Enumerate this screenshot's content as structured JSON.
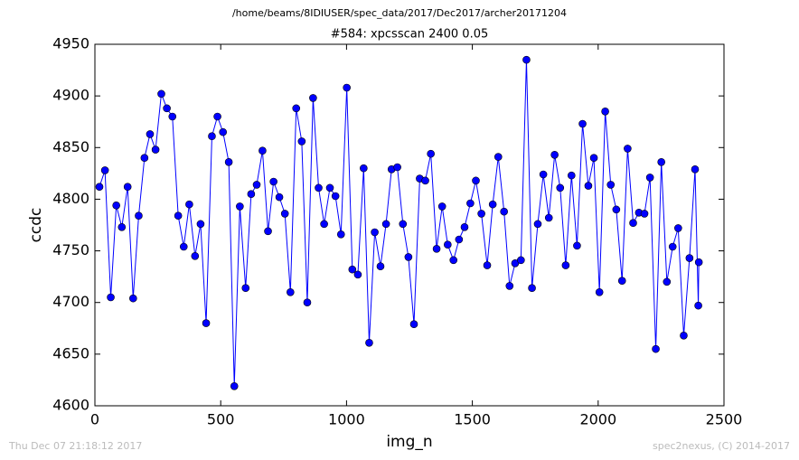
{
  "chart_data": {
    "type": "line",
    "header": "/home/beams/8IDIUSER/spec_data/2017/Dec2017/archer20171204",
    "title": "#584: xpcsscan 2400 0.05",
    "x_label": "img_n",
    "y_label": "ccdc",
    "footer_left": "Thu Dec 07 21:18:12 2017",
    "footer_right": "spec2nexus, (C) 2014-2017",
    "xlim": [
      0,
      2500
    ],
    "xticks": [
      0,
      500,
      1000,
      1500,
      2000,
      2500
    ],
    "ylim": [
      4600,
      4950
    ],
    "yticks": [
      4600,
      4650,
      4700,
      4750,
      4800,
      4850,
      4900,
      4950
    ],
    "x": [
      18,
      40,
      63,
      85,
      107,
      130,
      152,
      174,
      197,
      219,
      241,
      264,
      286,
      308,
      331,
      353,
      375,
      398,
      420,
      442,
      465,
      487,
      509,
      532,
      554,
      576,
      599,
      621,
      643,
      666,
      688,
      710,
      733,
      755,
      777,
      800,
      822,
      844,
      867,
      889,
      911,
      934,
      956,
      978,
      1001,
      1023,
      1045,
      1068,
      1090,
      1112,
      1135,
      1157,
      1179,
      1202,
      1224,
      1246,
      1268,
      1291,
      1313,
      1335,
      1358,
      1380,
      1402,
      1425,
      1447,
      1469,
      1492,
      1514,
      1536,
      1559,
      1581,
      1603,
      1626,
      1648,
      1670,
      1693,
      1715,
      1737,
      1760,
      1782,
      1804,
      1827,
      1849,
      1871,
      1894,
      1916,
      1938,
      1961,
      1983,
      2005,
      2028,
      2050,
      2072,
      2095,
      2117,
      2139,
      2162,
      2184,
      2206,
      2229,
      2251,
      2273,
      2296,
      2318,
      2340,
      2363,
      2385,
      2398,
      2400
    ],
    "series": [
      {
        "color": "#0000ff",
        "values": [
          4812,
          4828,
          4705,
          4794,
          4773,
          4812,
          4704,
          4784,
          4840,
          4863,
          4848,
          4902,
          4888,
          4880,
          4784,
          4754,
          4795,
          4745,
          4776,
          4680,
          4861,
          4880,
          4865,
          4836,
          4619,
          4793,
          4714,
          4805,
          4814,
          4847,
          4769,
          4817,
          4802,
          4786,
          4710,
          4888,
          4856,
          4700,
          4898,
          4811,
          4776,
          4811,
          4803,
          4766,
          4908,
          4732,
          4727,
          4830,
          4661,
          4768,
          4735,
          4776,
          4829,
          4831,
          4776,
          4744,
          4679,
          4820,
          4818,
          4844,
          4752,
          4793,
          4756,
          4741,
          4761,
          4773,
          4796,
          4818,
          4786,
          4736,
          4795,
          4841,
          4788,
          4716,
          4738,
          4741,
          4935,
          4714,
          4776,
          4824,
          4782,
          4843,
          4811,
          4736,
          4823,
          4755,
          4873,
          4813,
          4840,
          4710,
          4885,
          4814,
          4790,
          4721,
          4849,
          4777,
          4787,
          4786,
          4821,
          4655,
          4836,
          4720,
          4754,
          4772,
          4668,
          4743,
          4829,
          4697,
          4739
        ]
      }
    ]
  }
}
